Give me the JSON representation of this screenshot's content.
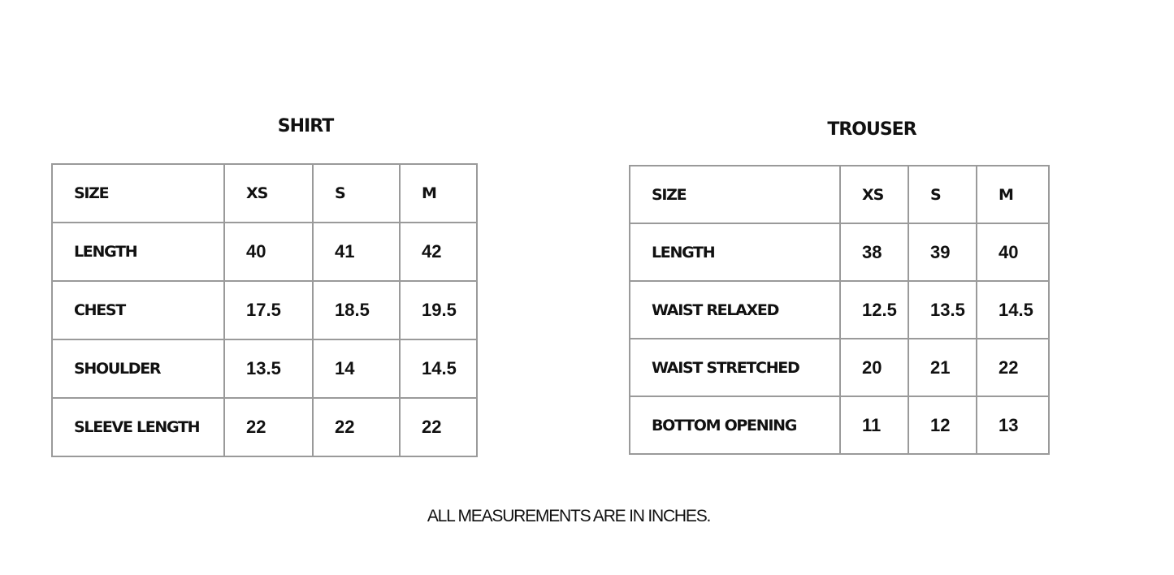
{
  "shirt": {
    "title": "SHIRT",
    "header": [
      "SIZE",
      "XS",
      "S",
      "M"
    ],
    "rows": [
      [
        "LENGTH",
        "40",
        "41",
        "42"
      ],
      [
        "CHEST",
        "17.5",
        "18.5",
        "19.5"
      ],
      [
        "SHOULDER",
        "13.5",
        "14",
        "14.5"
      ],
      [
        "SLEEVE LENGTH",
        "22",
        "22",
        "22"
      ]
    ]
  },
  "trouser": {
    "title": "TROUSER",
    "header": [
      "SIZE",
      "XS",
      "S",
      "M"
    ],
    "rows": [
      [
        "LENGTH",
        "38",
        "39",
        "40"
      ],
      [
        "WAIST RELAXED",
        "12.5",
        "13.5",
        "14.5"
      ],
      [
        "WAIST STRETCHED",
        "20",
        "21",
        "22"
      ],
      [
        "BOTTOM OPENING",
        "11",
        "12",
        "13"
      ]
    ]
  },
  "note": "ALL MEASUREMENTS ARE IN INCHES."
}
